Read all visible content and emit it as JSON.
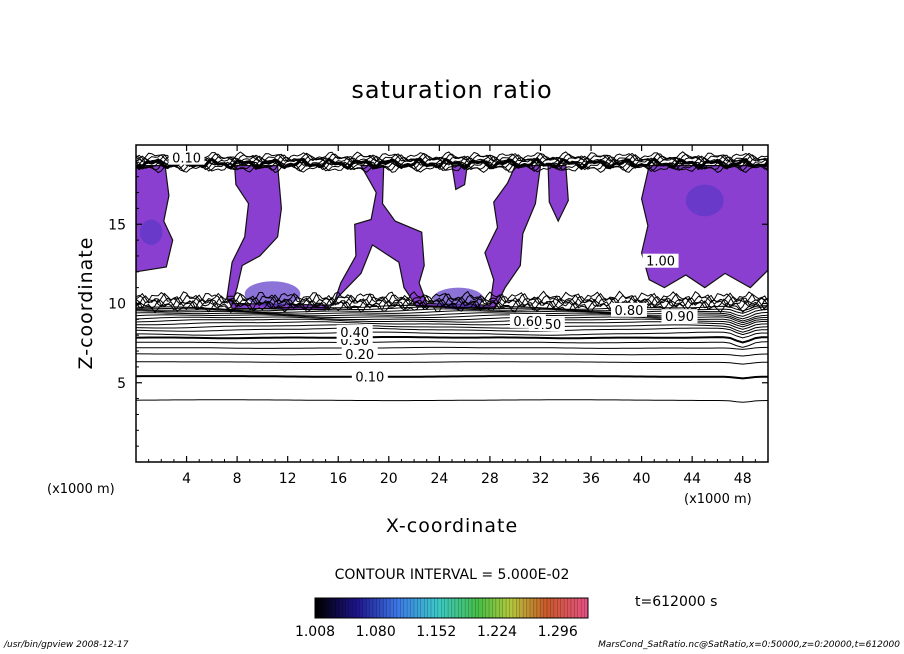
{
  "chart_data": {
    "type": "contour",
    "title": "saturation ratio",
    "xlabel": "X-coordinate",
    "ylabel": "Z-coordinate",
    "x_unit": "(x1000 m)",
    "xlim": [
      0,
      50
    ],
    "ylim": [
      0,
      20
    ],
    "x_ticks": [
      4,
      8,
      12,
      16,
      20,
      24,
      28,
      32,
      36,
      40,
      44,
      48
    ],
    "y_ticks": [
      5,
      10,
      15
    ],
    "contour_interval_text": "CONTOUR INTERVAL = 5.000E-02",
    "contour_labels": [
      {
        "text": "0.10",
        "x": 18.5,
        "z": 5.4
      },
      {
        "text": "0.20",
        "x": 17.7,
        "z": 6.8
      },
      {
        "text": "0.30",
        "x": 17.3,
        "z": 7.7
      },
      {
        "text": "0.40",
        "x": 17.3,
        "z": 8.2
      },
      {
        "text": "0.50",
        "x": 32.5,
        "z": 8.7
      },
      {
        "text": "0.60",
        "x": 31.0,
        "z": 8.9
      },
      {
        "text": "0.80",
        "x": 39.0,
        "z": 9.6
      },
      {
        "text": "0.90",
        "x": 43.0,
        "z": 9.2
      },
      {
        "text": "1.00",
        "x": 41.5,
        "z": 12.7
      },
      {
        "text": "0.10",
        "x": 4.0,
        "z": 19.2
      }
    ],
    "colorbar": {
      "ticks": [
        "1.008",
        "1.080",
        "1.152",
        "1.224",
        "1.296"
      ],
      "min": 1.008,
      "max": 1.332
    },
    "time_label": "t=612000 s"
  },
  "footer": {
    "left": "/usr/bin/gpview   2008-12-17",
    "right": "MarsCond_SatRatio.nc@SatRatio,x=0:50000,z=0:20000,t=612000"
  },
  "colors": {
    "shade": "#8a3fd1",
    "shade_dark": "#5b37c8",
    "shade_core": "#3b3fb8"
  }
}
